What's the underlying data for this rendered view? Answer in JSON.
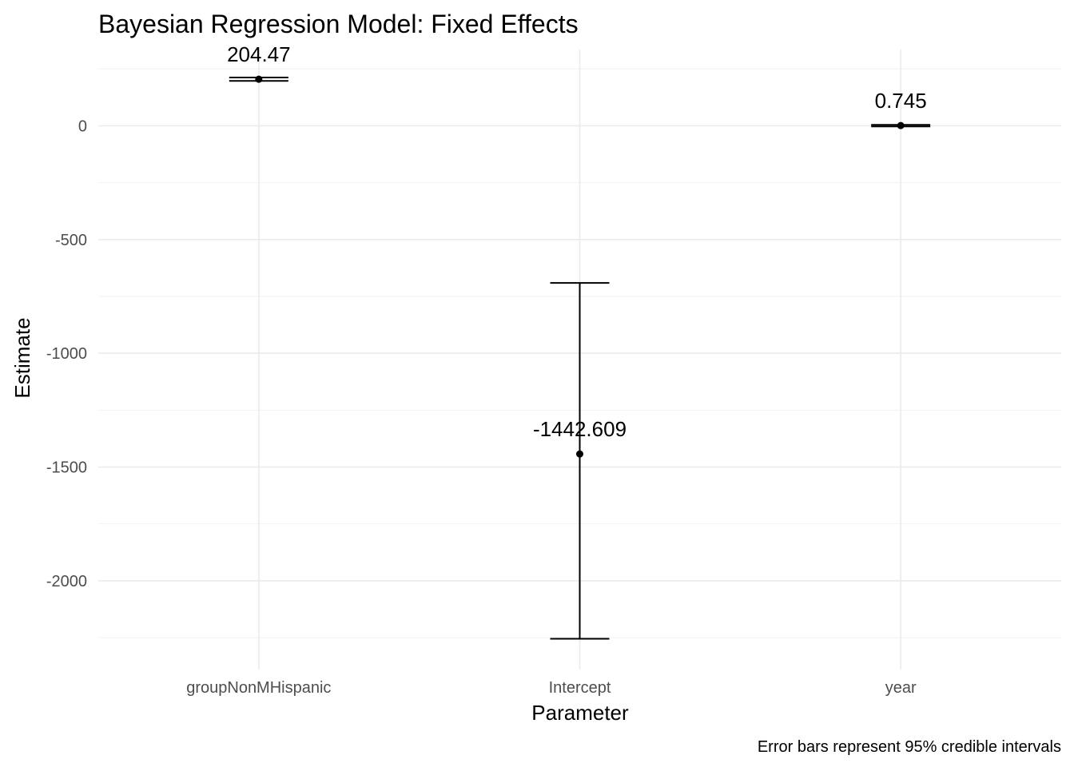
{
  "chart_data": {
    "type": "scatter",
    "title": "Bayesian Regression Model: Fixed Effects",
    "xlabel": "Parameter",
    "ylabel": "Estimate",
    "caption": "Error bars represent 95% credible intervals",
    "categories": [
      "groupNonMHispanic",
      "Intercept",
      "year"
    ],
    "estimates": [
      204.47,
      -1442.609,
      0.745
    ],
    "labels": [
      "204.47",
      "-1442.609",
      "0.745"
    ],
    "ci_lower": [
      197,
      -2255,
      -3
    ],
    "ci_upper": [
      212,
      -691,
      4
    ],
    "yticks": [
      0,
      -500,
      -1000,
      -1500,
      -2000
    ],
    "ylim": [
      -2390,
      335
    ],
    "grid": true,
    "legend": "none",
    "colors": {
      "point": "#000000",
      "grid": "#ebebeb",
      "text": "#4d4d4d"
    }
  }
}
